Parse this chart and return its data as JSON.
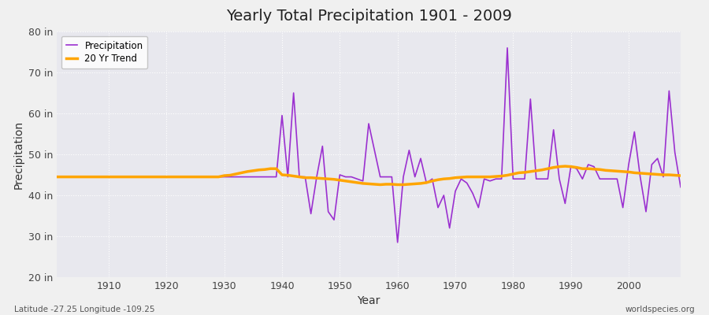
{
  "title": "Yearly Total Precipitation 1901 - 2009",
  "xlabel": "Year",
  "ylabel": "Precipitation",
  "footnote_left": "Latitude -27.25 Longitude -109.25",
  "footnote_right": "worldspecies.org",
  "legend_entries": [
    "Precipitation",
    "20 Yr Trend"
  ],
  "precip_color": "#9B30D0",
  "trend_color": "#FFA500",
  "fig_bg_color": "#F0F0F0",
  "plot_bg_color": "#E8E8EE",
  "ylim": [
    20,
    80
  ],
  "xlim": [
    1901,
    2009
  ],
  "yticks": [
    20,
    30,
    40,
    50,
    60,
    70,
    80
  ],
  "xticks": [
    1910,
    1920,
    1930,
    1940,
    1950,
    1960,
    1970,
    1980,
    1990,
    2000
  ],
  "years": [
    1901,
    1902,
    1903,
    1904,
    1905,
    1906,
    1907,
    1908,
    1909,
    1910,
    1911,
    1912,
    1913,
    1914,
    1915,
    1916,
    1917,
    1918,
    1919,
    1920,
    1921,
    1922,
    1923,
    1924,
    1925,
    1926,
    1927,
    1928,
    1929,
    1930,
    1931,
    1932,
    1933,
    1934,
    1935,
    1936,
    1937,
    1938,
    1939,
    1940,
    1941,
    1942,
    1943,
    1944,
    1945,
    1946,
    1947,
    1948,
    1949,
    1950,
    1951,
    1952,
    1953,
    1954,
    1955,
    1956,
    1957,
    1958,
    1959,
    1960,
    1961,
    1962,
    1963,
    1964,
    1965,
    1966,
    1967,
    1968,
    1969,
    1970,
    1971,
    1972,
    1973,
    1974,
    1975,
    1976,
    1977,
    1978,
    1979,
    1980,
    1981,
    1982,
    1983,
    1984,
    1985,
    1986,
    1987,
    1988,
    1989,
    1990,
    1991,
    1992,
    1993,
    1994,
    1995,
    1996,
    1997,
    1998,
    1999,
    2000,
    2001,
    2002,
    2003,
    2004,
    2005,
    2006,
    2007,
    2008,
    2009
  ],
  "precip": [
    44.5,
    44.5,
    44.5,
    44.5,
    44.5,
    44.5,
    44.5,
    44.5,
    44.5,
    44.5,
    44.5,
    44.5,
    44.5,
    44.5,
    44.5,
    44.5,
    44.5,
    44.5,
    44.5,
    44.5,
    44.5,
    44.5,
    44.5,
    44.5,
    44.5,
    44.5,
    44.5,
    44.5,
    44.5,
    44.5,
    44.5,
    44.5,
    44.5,
    44.5,
    44.5,
    44.5,
    44.5,
    44.5,
    44.5,
    59.5,
    44.5,
    65.0,
    44.5,
    44.5,
    35.5,
    44.5,
    52.0,
    36.0,
    34.0,
    45.0,
    44.5,
    44.5,
    44.0,
    43.5,
    57.5,
    51.0,
    44.5,
    44.5,
    44.5,
    28.5,
    44.5,
    51.0,
    44.5,
    49.0,
    43.0,
    44.0,
    37.0,
    40.0,
    32.0,
    41.0,
    44.0,
    43.0,
    40.5,
    37.0,
    44.0,
    43.5,
    44.0,
    44.0,
    76.0,
    44.0,
    44.0,
    44.0,
    63.5,
    44.0,
    44.0,
    44.0,
    56.0,
    44.0,
    38.0,
    47.0,
    46.5,
    44.0,
    47.5,
    47.0,
    44.0,
    44.0,
    44.0,
    44.0,
    37.0,
    47.5,
    55.5,
    44.5,
    36.0,
    47.5,
    49.0,
    44.5,
    65.5,
    50.5,
    42.0
  ],
  "trend": [
    44.5,
    44.5,
    44.5,
    44.5,
    44.5,
    44.5,
    44.5,
    44.5,
    44.5,
    44.5,
    44.5,
    44.5,
    44.5,
    44.5,
    44.5,
    44.5,
    44.5,
    44.5,
    44.5,
    44.5,
    44.5,
    44.5,
    44.5,
    44.5,
    44.5,
    44.5,
    44.5,
    44.5,
    44.5,
    44.8,
    44.9,
    45.2,
    45.5,
    45.8,
    46.0,
    46.2,
    46.3,
    46.5,
    46.5,
    45.0,
    44.9,
    44.7,
    44.5,
    44.3,
    44.3,
    44.2,
    44.1,
    44.0,
    43.9,
    43.7,
    43.5,
    43.3,
    43.1,
    42.9,
    42.8,
    42.7,
    42.6,
    42.7,
    42.7,
    42.6,
    42.6,
    42.7,
    42.8,
    42.9,
    43.1,
    43.5,
    43.8,
    44.0,
    44.1,
    44.3,
    44.4,
    44.5,
    44.5,
    44.5,
    44.5,
    44.5,
    44.6,
    44.7,
    44.9,
    45.2,
    45.5,
    45.6,
    45.8,
    46.0,
    46.2,
    46.5,
    46.8,
    47.0,
    47.1,
    47.0,
    46.8,
    46.5,
    46.5,
    46.4,
    46.3,
    46.1,
    46.0,
    45.9,
    45.8,
    45.7,
    45.5,
    45.4,
    45.3,
    45.2,
    45.1,
    45.0,
    45.0,
    44.9,
    44.8
  ]
}
